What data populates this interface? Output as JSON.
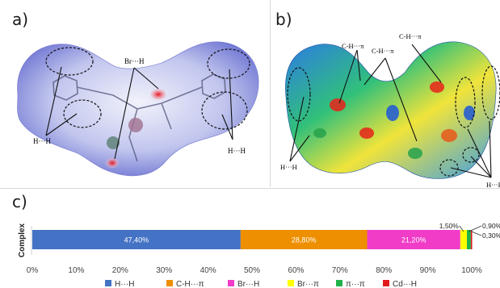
{
  "panels": {
    "a": {
      "label": "a)",
      "annotations": {
        "br_h": "Br···H",
        "h_h_left": "H···H",
        "h_h_right": "H···H"
      }
    },
    "b": {
      "label": "b)",
      "annotations": {
        "ch_pi_1": "C-H···π",
        "ch_pi_2": "C-H···π",
        "ch_pi_3": "C-H···π",
        "h_h_left": "H···H",
        "h_h_right": "H···H"
      }
    },
    "c": {
      "label": "c)"
    }
  },
  "colors": {
    "h_h": "#4472C4",
    "ch_pi": "#ED8F00",
    "br_h": "#F03CC7",
    "br_pi": "#FFFF00",
    "pi_pi": "#22B24C",
    "cd_h": "#E31A1C"
  },
  "chart_data": {
    "type": "bar",
    "orientation": "horizontal",
    "stacked": true,
    "categories": [
      "Complex"
    ],
    "series": [
      {
        "name": "H···H",
        "values": [
          47.4
        ],
        "label": "47,40%",
        "color": "#4472C4"
      },
      {
        "name": "C-H···π",
        "values": [
          28.8
        ],
        "label": "28,80%",
        "color": "#ED8F00"
      },
      {
        "name": "Br···H",
        "values": [
          21.2
        ],
        "label": "21,20%",
        "color": "#F03CC7"
      },
      {
        "name": "Br···π",
        "values": [
          1.5
        ],
        "label": "1,50%",
        "color": "#FFFF00"
      },
      {
        "name": "π···π",
        "values": [
          0.9
        ],
        "label": "0,90%",
        "color": "#22B24C"
      },
      {
        "name": "Cd···H",
        "values": [
          0.3
        ],
        "label": "0,30%",
        "color": "#E31A1C"
      }
    ],
    "xlim": [
      0,
      100
    ],
    "xticks": [
      "0%",
      "10%",
      "20%",
      "30%",
      "40%",
      "50%",
      "60%",
      "70%",
      "80%",
      "90%",
      "100%"
    ],
    "ylabel": "Complex",
    "legend": "bottom",
    "grid": false
  }
}
